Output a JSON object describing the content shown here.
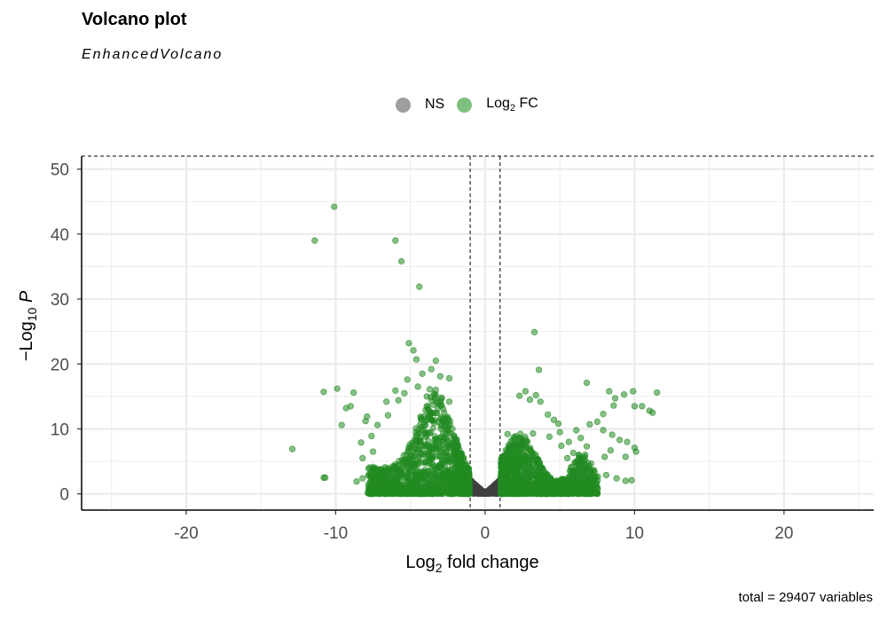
{
  "title": "Volcano plot",
  "subtitle": "EnhancedVolcano",
  "caption": "total = 29407 variables",
  "colors": {
    "ns": "#404040",
    "fc": "#228b22",
    "grid": "#ebebeb",
    "axis": "#000000"
  },
  "legend": [
    {
      "label": "NS",
      "color": "#9e9e9e"
    },
    {
      "label_main": "Log",
      "label_sub": "2",
      "label_rest": " FC",
      "color": "#7fbf7f"
    }
  ],
  "chart_data": {
    "type": "scatter",
    "xlabel": {
      "main": "Log",
      "sub": "2",
      "rest": " fold change"
    },
    "ylabel": {
      "main": "−Log",
      "sub": "10",
      "rest": " P"
    },
    "xlim": [
      -27,
      26
    ],
    "ylim": [
      -2.5,
      52
    ],
    "xticks": [
      -20,
      -10,
      0,
      10,
      20
    ],
    "xtick_labels": [
      "-20",
      "-10",
      "0",
      "10",
      "20"
    ],
    "yticks": [
      0,
      10,
      20,
      30,
      40,
      50
    ],
    "ytick_labels": [
      "0",
      "10",
      "20",
      "30",
      "40",
      "50"
    ],
    "fc_cutoff": [
      -1,
      1
    ],
    "p_cutoff": 52,
    "series": [
      {
        "name": "Log2 FC",
        "points": [
          [
            -10.1,
            44.2
          ],
          [
            -11.4,
            39.0
          ],
          [
            -6.0,
            39.0
          ],
          [
            -5.6,
            35.8
          ],
          [
            -4.4,
            31.9
          ],
          [
            -5.1,
            23.2
          ],
          [
            -4.8,
            22.1
          ],
          [
            -3.3,
            20.5
          ],
          [
            -4.6,
            20.7
          ],
          [
            -3.6,
            19.2
          ],
          [
            -4.2,
            18.5
          ],
          [
            -5.2,
            17.6
          ],
          [
            -3.0,
            18.1
          ],
          [
            -2.4,
            17.8
          ],
          [
            -4.5,
            16.5
          ],
          [
            -3.7,
            16.1
          ],
          [
            -5.4,
            15.5
          ],
          [
            -6.0,
            15.9
          ],
          [
            -6.6,
            14.2
          ],
          [
            -5.8,
            14.4
          ],
          [
            -3.3,
            16.0
          ],
          [
            -2.9,
            14.8
          ],
          [
            -3.9,
            15.0
          ],
          [
            -2.4,
            14.2
          ],
          [
            -10.8,
            15.7
          ],
          [
            -9.9,
            16.2
          ],
          [
            -8.8,
            15.6
          ],
          [
            -9.3,
            13.2
          ],
          [
            -9.0,
            13.5
          ],
          [
            -8.0,
            11.2
          ],
          [
            -9.6,
            10.6
          ],
          [
            -12.9,
            6.9
          ],
          [
            -10.7,
            2.5
          ],
          [
            -10.8,
            2.5
          ],
          [
            -7.9,
            11.9
          ],
          [
            -7.2,
            10.6
          ],
          [
            -6.5,
            12.1
          ],
          [
            -7.6,
            8.9
          ],
          [
            -8.3,
            7.9
          ],
          [
            -8.2,
            5.5
          ],
          [
            -7.8,
            3.9
          ],
          [
            -8.2,
            2.4
          ],
          [
            -8.6,
            1.9
          ],
          [
            -7.5,
            6.5
          ],
          [
            3.3,
            24.9
          ],
          [
            3.6,
            19.1
          ],
          [
            3.4,
            15.2
          ],
          [
            2.7,
            15.8
          ],
          [
            2.3,
            15.1
          ],
          [
            3.0,
            14.5
          ],
          [
            3.7,
            14.2
          ],
          [
            4.2,
            12.2
          ],
          [
            4.6,
            11.4
          ],
          [
            4.9,
            10.8
          ],
          [
            6.8,
            17.1
          ],
          [
            8.3,
            15.8
          ],
          [
            8.7,
            14.7
          ],
          [
            9.3,
            15.3
          ],
          [
            9.9,
            15.8
          ],
          [
            10.0,
            13.5
          ],
          [
            10.5,
            13.5
          ],
          [
            11.2,
            12.5
          ],
          [
            11.0,
            12.8
          ],
          [
            11.5,
            15.6
          ],
          [
            8.6,
            13.6
          ],
          [
            7.9,
            12.3
          ],
          [
            7.5,
            11.1
          ],
          [
            7.0,
            10.7
          ],
          [
            6.1,
            9.8
          ],
          [
            7.9,
            9.8
          ],
          [
            8.5,
            9.1
          ],
          [
            9.0,
            8.3
          ],
          [
            9.5,
            8.0
          ],
          [
            10.0,
            7.1
          ],
          [
            10.1,
            6.5
          ],
          [
            9.4,
            5.7
          ],
          [
            8.0,
            5.7
          ],
          [
            6.8,
            7.3
          ],
          [
            6.4,
            8.6
          ],
          [
            5.6,
            8.0
          ],
          [
            5.1,
            7.4
          ],
          [
            5.9,
            6.3
          ],
          [
            9.8,
            2.1
          ],
          [
            9.4,
            2.0
          ],
          [
            8.8,
            2.4
          ],
          [
            8.1,
            2.9
          ],
          [
            7.0,
            3.7
          ],
          [
            8.4,
            6.7
          ],
          [
            1.5,
            9.2
          ],
          [
            2.3,
            8.6
          ],
          [
            3.2,
            9.3
          ],
          [
            4.3,
            8.8
          ],
          [
            5.0,
            9.5
          ],
          [
            5.5,
            5.5
          ]
        ]
      },
      {
        "name": "NS",
        "points": [
          [
            -0.9,
            1.9
          ],
          [
            -0.7,
            1.4
          ],
          [
            -0.5,
            1.0
          ],
          [
            -0.3,
            0.7
          ],
          [
            -0.1,
            0.4
          ],
          [
            0.1,
            0.4
          ],
          [
            0.3,
            0.7
          ],
          [
            0.5,
            1.0
          ],
          [
            0.7,
            1.4
          ],
          [
            0.9,
            1.8
          ],
          [
            -0.8,
            0.6
          ],
          [
            -0.4,
            0.2
          ],
          [
            0.0,
            0.1
          ],
          [
            0.4,
            0.2
          ],
          [
            0.8,
            0.6
          ]
        ]
      }
    ]
  }
}
